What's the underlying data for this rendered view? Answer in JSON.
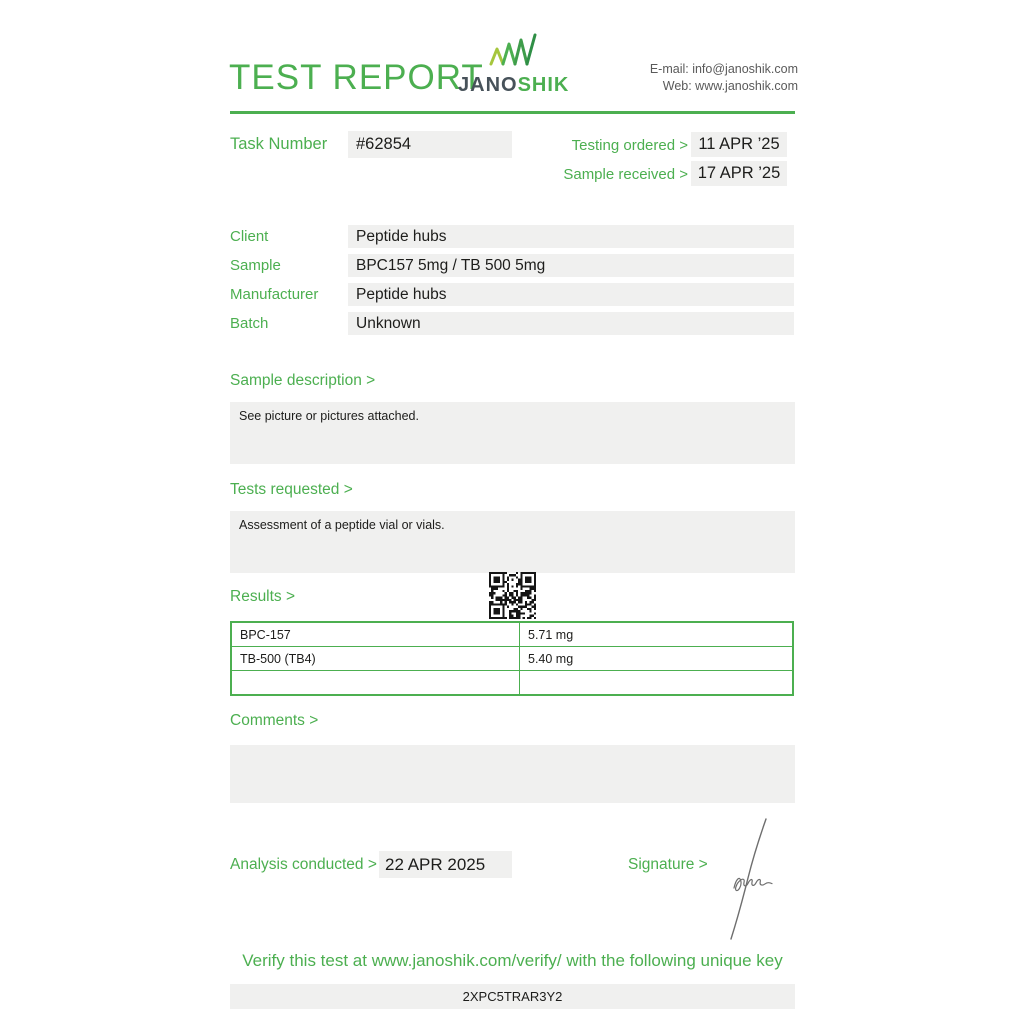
{
  "header": {
    "title": "TEST REPORT",
    "logo_jano": "JANO",
    "logo_shik": "SHIK",
    "contact_email": "E-mail: info@janoshik.com",
    "contact_web": "Web: www.janoshik.com"
  },
  "task": {
    "label": "Task Number",
    "value": "#62854"
  },
  "dates": [
    {
      "label": "Testing ordered  >",
      "value": "11 APR ’25"
    },
    {
      "label": "Sample received >",
      "value": "17 APR ’25"
    }
  ],
  "info": [
    {
      "label": "Client",
      "value": "Peptide hubs"
    },
    {
      "label": "Sample",
      "value": "BPC157 5mg / TB 500 5mg"
    },
    {
      "label": "Manufacturer",
      "value": "Peptide hubs"
    },
    {
      "label": "Batch",
      "value": "Unknown"
    }
  ],
  "sections": {
    "sample_description": {
      "label": "Sample description >",
      "body": "See picture or pictures attached."
    },
    "tests_requested": {
      "label": "Tests requested >",
      "body": "Assessment of a peptide vial or vials."
    },
    "results": {
      "label": "Results >"
    },
    "comments": {
      "label": "Comments >",
      "body": ""
    }
  },
  "results_table": {
    "rows": [
      {
        "name": "BPC-157",
        "value": "5.71 mg"
      },
      {
        "name": "TB-500 (TB4)",
        "value": "5.40 mg"
      },
      {
        "name": "",
        "value": ""
      }
    ]
  },
  "footer": {
    "analysis_label": "Analysis conducted >",
    "analysis_value": "22 APR 2025",
    "signature_label": "Signature >",
    "verify_text": "Verify this test at www.janoshik.com/verify/ with the following unique key",
    "verify_key": "2XPC5TRAR3Y2"
  },
  "icons": {
    "logo_chart": "trending-bars-icon",
    "qr": "qr-code"
  },
  "colors": {
    "accent_green": "#4caf50",
    "logo_dark": "#47525a",
    "field_bg": "#f0f0ef",
    "text_dark": "#1d1d1b",
    "contact_gray": "#5a5a5a"
  }
}
